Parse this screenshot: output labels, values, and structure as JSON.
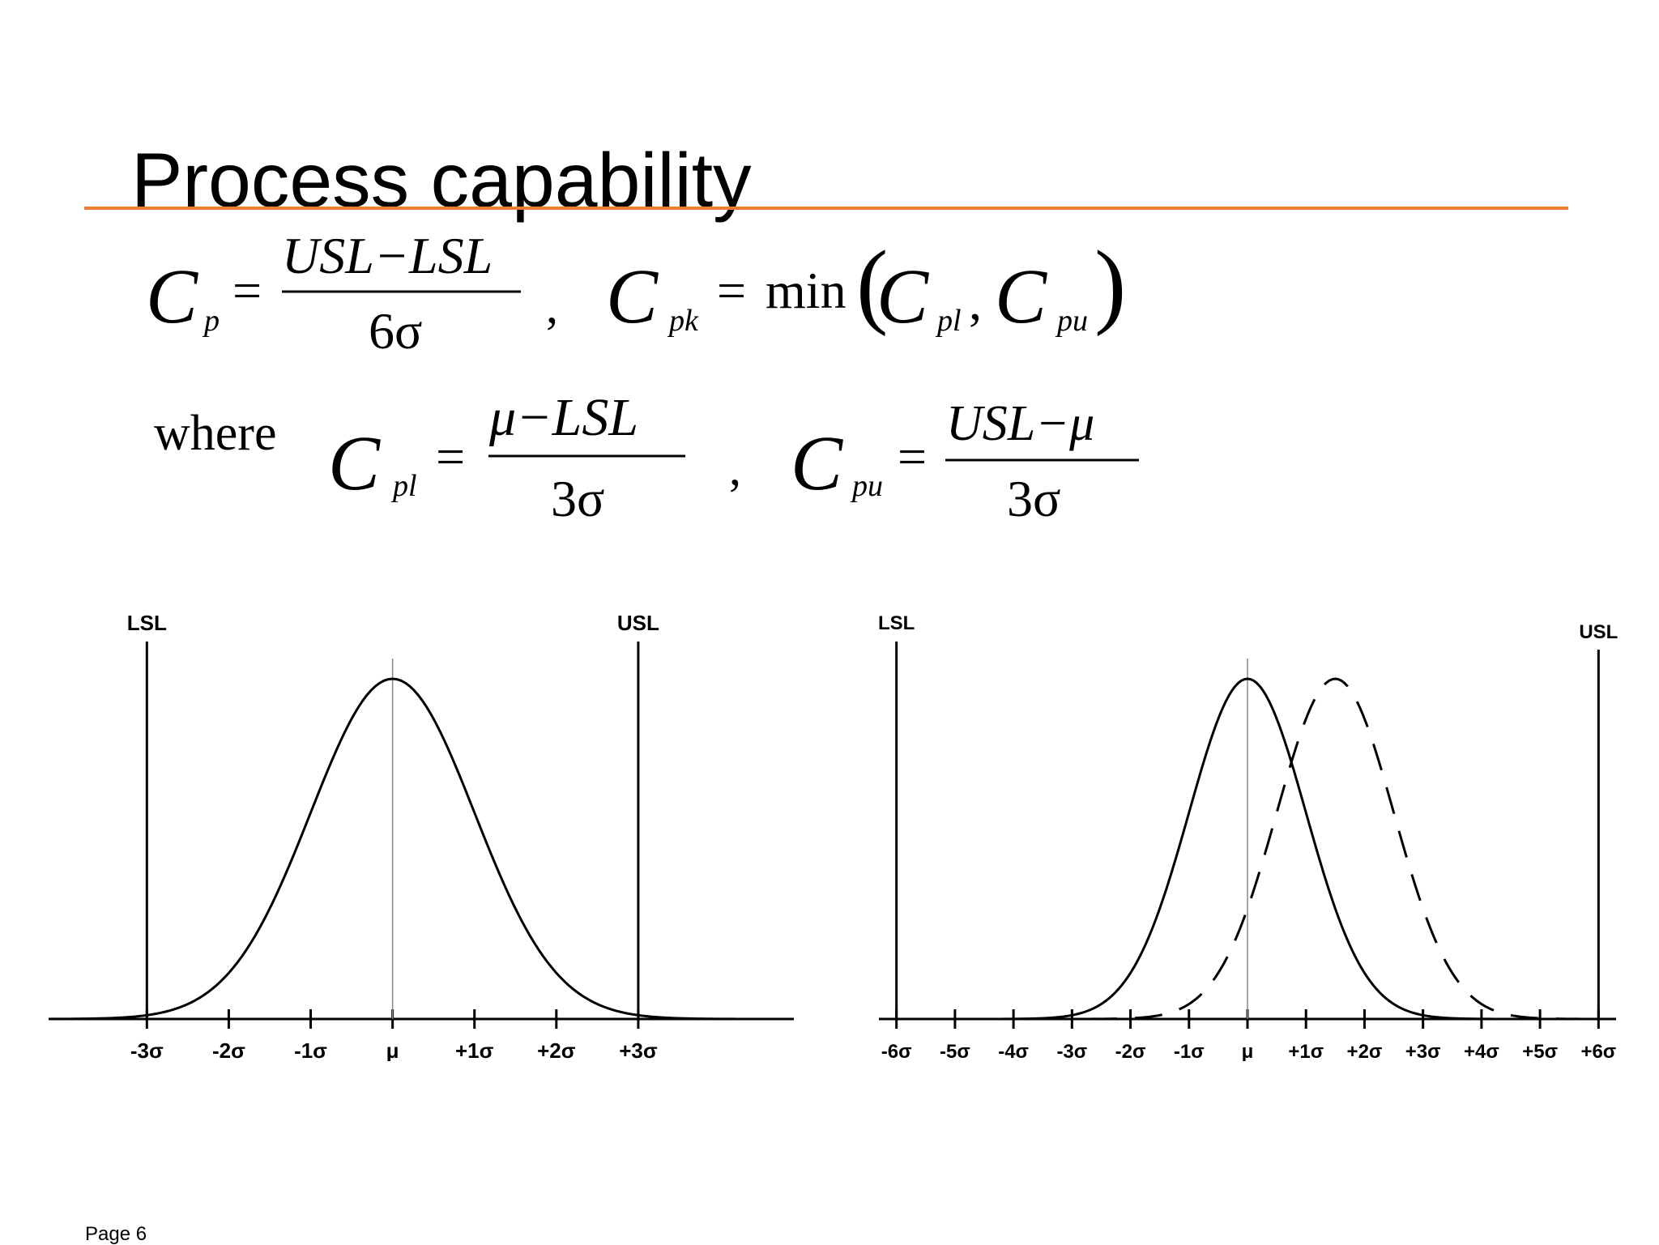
{
  "slide": {
    "title": "Process capability",
    "accent_color": "#ED7D31",
    "page_label": "Page 6"
  },
  "formulas": {
    "cp": {
      "lhs": "C",
      "lhs_sub": "p",
      "equals": "=",
      "numerator": "USL−LSL",
      "denominator": "6σ"
    },
    "separator_1": ",",
    "cpk": {
      "lhs": "C",
      "lhs_sub": "pk",
      "equals": "=",
      "func": "min",
      "open_paren": "(",
      "arg1": "C",
      "arg1_sub": "pl",
      "comma": ",",
      "arg2": "C",
      "arg2_sub": "pu",
      "close_paren": ")"
    },
    "where_word": "where",
    "cpl": {
      "lhs": "C",
      "lhs_sub": "pl",
      "equals": "=",
      "numerator": "μ−LSL",
      "denominator": "3σ"
    },
    "separator_2": ",",
    "cpu": {
      "lhs": "C",
      "lhs_sub": "pu",
      "equals": "=",
      "numerator": "USL−μ",
      "denominator": "3σ"
    }
  },
  "chart_data": [
    {
      "type": "line",
      "x_unit": "sigma",
      "xlim": [
        -4.2,
        4.9
      ],
      "ylim": [
        0,
        1
      ],
      "grid": false,
      "legend": "none",
      "tick_labels": [
        "-3σ",
        "-2σ",
        "-1σ",
        "μ",
        "+1σ",
        "+2σ",
        "+3σ"
      ],
      "ticks": [
        -3,
        -2,
        -1,
        0,
        1,
        2,
        3
      ],
      "spec_limits": [
        {
          "label": "LSL",
          "x": -3
        },
        {
          "label": "USL",
          "x": 3
        }
      ],
      "mean_line_x": 0,
      "series": [
        {
          "mean": 0,
          "sd": 1,
          "style": "solid"
        }
      ]
    },
    {
      "type": "line",
      "x_unit": "sigma",
      "xlim": [
        -6.3,
        6.3
      ],
      "ylim": [
        0,
        1
      ],
      "grid": false,
      "legend": "none",
      "tick_labels": [
        "-6σ",
        "-5σ",
        "-4σ",
        "-3σ",
        "-2σ",
        "-1σ",
        "μ",
        "+1σ",
        "+2σ",
        "+3σ",
        "+4σ",
        "+5σ",
        "+6σ"
      ],
      "ticks": [
        -6,
        -5,
        -4,
        -3,
        -2,
        -1,
        0,
        1,
        2,
        3,
        4,
        5,
        6
      ],
      "spec_limits": [
        {
          "label": "LSL",
          "x": -6
        },
        {
          "label": "USL",
          "x": 6
        }
      ],
      "mean_line_x": 0,
      "series": [
        {
          "mean": 0,
          "sd": 1,
          "style": "solid"
        },
        {
          "mean": 1.5,
          "sd": 1,
          "style": "dashed"
        }
      ]
    }
  ]
}
